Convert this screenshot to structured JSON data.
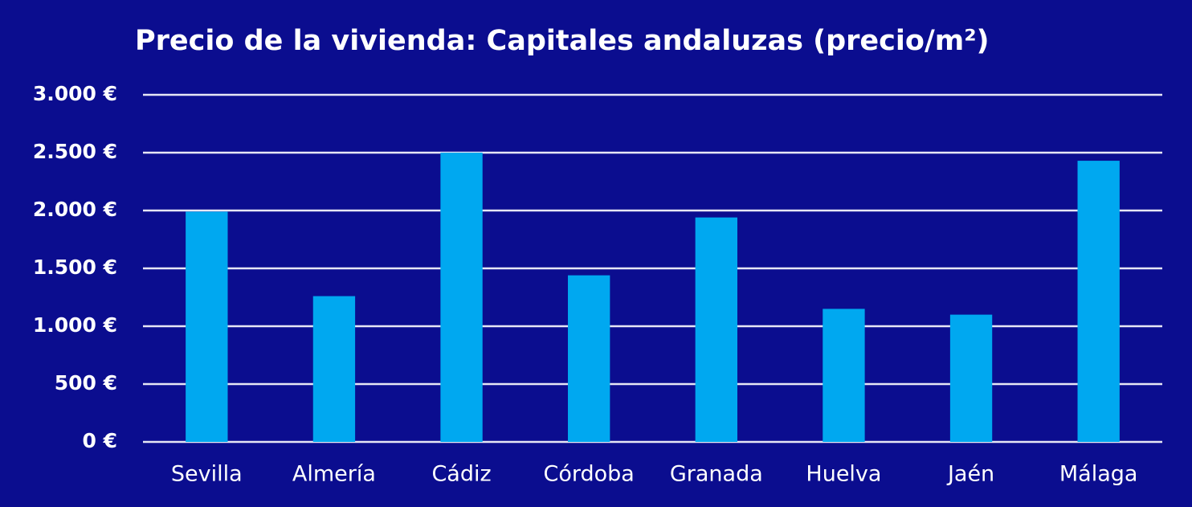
{
  "chart_data": {
    "type": "bar",
    "title": "Precio de la vivienda: Capitales andaluzas (precio/m²)",
    "categories": [
      "Sevilla",
      "Almería",
      "Cádiz",
      "Córdoba",
      "Granada",
      "Huelva",
      "Jaén",
      "Málaga"
    ],
    "values": [
      1990,
      1260,
      2500,
      1440,
      1940,
      1150,
      1100,
      2430
    ],
    "color": "#00a8f0",
    "ylim": [
      0,
      3000
    ],
    "yticks": [
      {
        "value": 0,
        "label": "0 €"
      },
      {
        "value": 500,
        "label": "500 €"
      },
      {
        "value": 1000,
        "label": "1.000 €"
      },
      {
        "value": 1500,
        "label": "1.500 €"
      },
      {
        "value": 2000,
        "label": "2.000 €"
      },
      {
        "value": 2500,
        "label": "2.500 €"
      },
      {
        "value": 3000,
        "label": "3.000 €"
      }
    ],
    "grid": true
  }
}
